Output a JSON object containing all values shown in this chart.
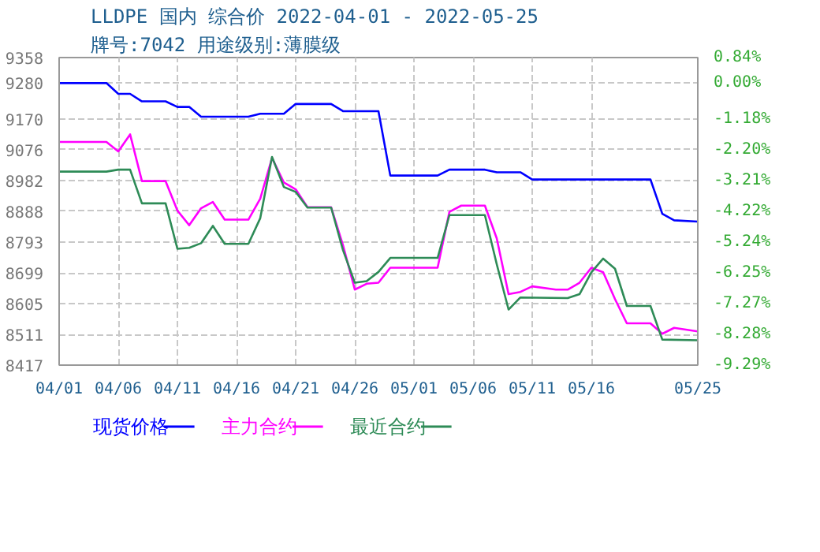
{
  "chart_data": {
    "type": "line",
    "title": "LLDPE 国内 综合价 2022-04-01 - 2022-05-25",
    "subtitle": "牌号:7042 用途级别:薄膜级",
    "xlim": [
      "2022-04-01",
      "2022-05-25"
    ],
    "xticks": [
      {
        "value": "2022-04-01",
        "label": "04/01"
      },
      {
        "value": "2022-04-06",
        "label": "04/06"
      },
      {
        "value": "2022-04-11",
        "label": "04/11"
      },
      {
        "value": "2022-04-16",
        "label": "04/16"
      },
      {
        "value": "2022-04-21",
        "label": "04/21"
      },
      {
        "value": "2022-04-26",
        "label": "04/26"
      },
      {
        "value": "2022-05-01",
        "label": "05/01"
      },
      {
        "value": "2022-05-06",
        "label": "05/06"
      },
      {
        "value": "2022-05-11",
        "label": "05/11"
      },
      {
        "value": "2022-05-16",
        "label": "05/16"
      },
      {
        "value": "2022-05-25",
        "label": "05/25"
      }
    ],
    "ylim": [
      8417,
      9358
    ],
    "yticks": [
      8417,
      8511,
      8605,
      8699,
      8793,
      8888,
      8982,
      9076,
      9170,
      9280,
      9358
    ],
    "y2lim": [
      -9.29,
      0.84
    ],
    "y2ticks": [
      {
        "value": -9.29,
        "label": "-9.29%"
      },
      {
        "value": -8.28,
        "label": "-8.28%"
      },
      {
        "value": -7.27,
        "label": "-7.27%"
      },
      {
        "value": -6.25,
        "label": "-6.25%"
      },
      {
        "value": -5.24,
        "label": "-5.24%"
      },
      {
        "value": -4.22,
        "label": "-4.22%"
      },
      {
        "value": -3.21,
        "label": "-3.21%"
      },
      {
        "value": -2.2,
        "label": "-2.20%"
      },
      {
        "value": -1.18,
        "label": "-1.18%"
      },
      {
        "value": 0,
        "label": "0.00%"
      },
      {
        "value": 0.84,
        "label": "0.84%"
      }
    ],
    "grid": true,
    "legend": "bottom",
    "line_style": "solid",
    "series": [
      {
        "name": "现货价格",
        "color": "#0000ff",
        "x": [
          "2022-04-01",
          "2022-04-05",
          "2022-04-06",
          "2022-04-07",
          "2022-04-08",
          "2022-04-10",
          "2022-04-11",
          "2022-04-12",
          "2022-04-13",
          "2022-04-17",
          "2022-04-18",
          "2022-04-20",
          "2022-04-21",
          "2022-04-24",
          "2022-04-25",
          "2022-04-28",
          "2022-04-29",
          "2022-05-03",
          "2022-05-04",
          "2022-05-07",
          "2022-05-08",
          "2022-05-10",
          "2022-05-11",
          "2022-05-21",
          "2022-05-22",
          "2022-05-23",
          "2022-05-25"
        ],
        "values": [
          9280,
          9280,
          9247,
          9247,
          9224,
          9224,
          9207,
          9207,
          9177,
          9177,
          9186,
          9186,
          9216,
          9216,
          9194,
          9194,
          8997,
          8997,
          9015,
          9015,
          9007,
          9007,
          8985,
          8985,
          8880,
          8860,
          8856
        ]
      },
      {
        "name": "主力合约",
        "color": "#ff00ff",
        "x": [
          "2022-04-01",
          "2022-04-05",
          "2022-04-06",
          "2022-04-07",
          "2022-04-08",
          "2022-04-10",
          "2022-04-11",
          "2022-04-12",
          "2022-04-13",
          "2022-04-14",
          "2022-04-15",
          "2022-04-17",
          "2022-04-18",
          "2022-04-19",
          "2022-04-20",
          "2022-04-21",
          "2022-04-22",
          "2022-04-24",
          "2022-04-25",
          "2022-04-26",
          "2022-04-27",
          "2022-04-28",
          "2022-04-29",
          "2022-05-03",
          "2022-05-04",
          "2022-05-05",
          "2022-05-07",
          "2022-05-08",
          "2022-05-09",
          "2022-05-10",
          "2022-05-11",
          "2022-05-13",
          "2022-05-14",
          "2022-05-15",
          "2022-05-16",
          "2022-05-17",
          "2022-05-18",
          "2022-05-19",
          "2022-05-21",
          "2022-05-22",
          "2022-05-23",
          "2022-05-25"
        ],
        "values": [
          9100,
          9100,
          9071,
          9123,
          8980,
          8980,
          8890,
          8845,
          8897,
          8916,
          8862,
          8862,
          8926,
          9051,
          8976,
          8955,
          8900,
          8900,
          8784,
          8648,
          8666,
          8669,
          8715,
          8715,
          8886,
          8905,
          8905,
          8805,
          8634,
          8641,
          8658,
          8648,
          8648,
          8669,
          8715,
          8701,
          8619,
          8545,
          8545,
          8513,
          8531,
          8520
        ]
      },
      {
        "name": "最近合约",
        "color": "#2e8b57",
        "x": [
          "2022-04-01",
          "2022-04-05",
          "2022-04-06",
          "2022-04-07",
          "2022-04-08",
          "2022-04-10",
          "2022-04-11",
          "2022-04-12",
          "2022-04-13",
          "2022-04-14",
          "2022-04-15",
          "2022-04-17",
          "2022-04-18",
          "2022-04-19",
          "2022-04-20",
          "2022-04-21",
          "2022-04-22",
          "2022-04-24",
          "2022-04-25",
          "2022-04-26",
          "2022-04-27",
          "2022-04-28",
          "2022-04-29",
          "2022-05-03",
          "2022-05-04",
          "2022-05-07",
          "2022-05-08",
          "2022-05-09",
          "2022-05-10",
          "2022-05-14",
          "2022-05-15",
          "2022-05-16",
          "2022-05-17",
          "2022-05-18",
          "2022-05-19",
          "2022-05-21",
          "2022-05-22",
          "2022-05-25"
        ],
        "values": [
          9009,
          9009,
          9015,
          9015,
          8912,
          8912,
          8773,
          8776,
          8790,
          8843,
          8788,
          8788,
          8866,
          9054,
          8962,
          8947,
          8899,
          8899,
          8769,
          8669,
          8674,
          8702,
          8745,
          8745,
          8876,
          8876,
          8726,
          8587,
          8624,
          8622,
          8634,
          8701,
          8743,
          8712,
          8598,
          8598,
          8495,
          8493
        ]
      }
    ]
  }
}
